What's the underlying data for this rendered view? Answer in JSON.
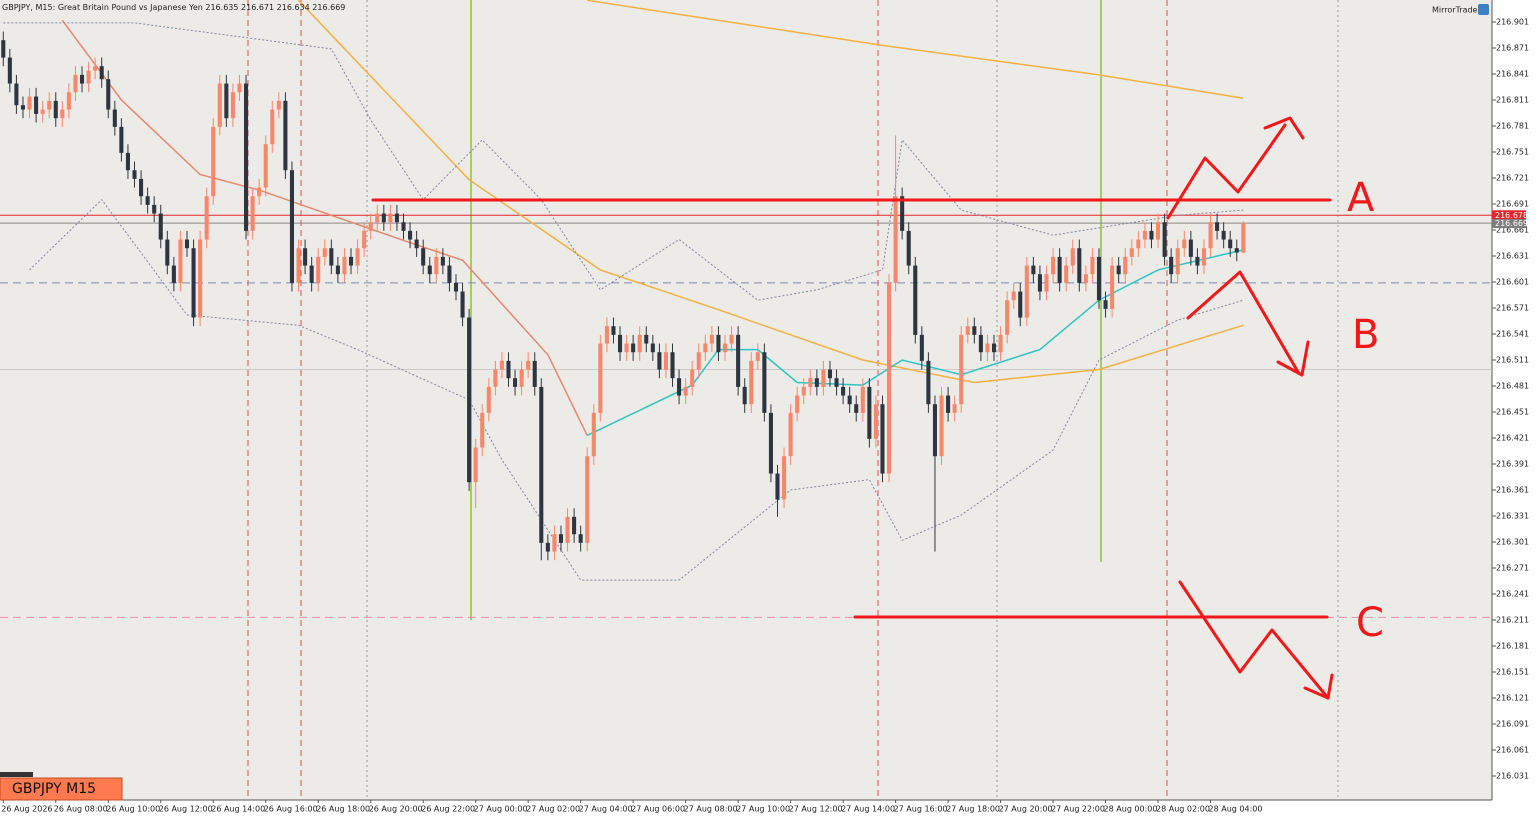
{
  "chart_data": {
    "type": "candlestick",
    "header": "GBPJPY, M15: Great Britain Pound vs Japanese Yen",
    "brand": "MirrorTrader",
    "badge": "GBPJPY M15",
    "bull_color": "#f7876a",
    "bear_color": "#2d3540",
    "open": [
      216.88,
      216.86,
      216.83,
      216.805,
      216.8,
      216.815,
      216.795,
      216.8,
      216.81,
      216.79,
      216.8,
      216.82,
      216.84,
      216.83,
      216.845,
      216.85,
      216.835,
      216.8,
      216.78,
      216.75,
      216.73,
      216.72,
      216.7,
      216.69,
      216.68,
      216.65,
      216.62,
      216.6,
      216.65,
      216.64,
      216.56,
      216.65,
      216.7,
      216.78,
      216.83,
      216.79,
      216.82,
      216.83,
      216.66,
      216.7,
      216.71,
      216.76,
      216.8,
      216.81,
      216.73,
      216.6,
      216.64,
      216.62,
      216.6,
      216.63,
      216.64,
      216.62,
      216.61,
      216.63,
      216.62,
      216.64,
      216.66,
      216.67,
      216.68,
      216.67,
      216.68,
      216.67,
      216.66,
      216.65,
      216.64,
      216.62,
      216.61,
      216.63,
      216.62,
      216.6,
      216.59,
      216.56,
      216.37,
      216.41,
      216.45,
      216.48,
      216.5,
      216.51,
      216.49,
      216.48,
      216.5,
      216.51,
      216.48,
      216.3,
      216.29,
      216.31,
      216.3,
      216.33,
      216.31,
      216.3,
      216.4,
      216.45,
      216.53,
      216.55,
      216.54,
      216.52,
      216.53,
      216.52,
      216.54,
      216.53,
      216.52,
      216.5,
      216.52,
      216.49,
      216.47,
      216.48,
      216.5,
      216.52,
      216.53,
      216.54,
      216.52,
      216.53,
      216.54,
      216.48,
      216.46,
      216.51,
      216.52,
      216.45,
      216.38,
      216.35,
      216.4,
      216.45,
      216.47,
      216.48,
      216.49,
      216.48,
      216.5,
      216.49,
      216.48,
      216.47,
      216.46,
      216.45,
      216.48,
      216.42,
      216.46,
      216.38,
      216.6,
      216.7,
      216.66,
      216.62,
      216.54,
      216.51,
      216.46,
      216.4,
      216.47,
      216.45,
      216.46,
      216.54,
      216.55,
      216.54,
      216.52,
      216.53,
      216.52,
      216.54,
      216.58,
      216.59,
      216.56,
      216.62,
      216.61,
      216.59,
      216.61,
      216.63,
      216.6,
      216.62,
      216.64,
      216.6,
      216.61,
      216.63,
      216.58,
      216.57,
      216.62,
      216.61,
      216.63,
      216.64,
      216.65,
      216.66,
      216.65,
      216.67,
      216.63,
      216.61,
      216.64,
      216.65,
      216.63,
      216.62,
      216.64,
      216.67,
      216.66,
      216.65,
      216.64,
      216.635
    ],
    "high": [
      216.89,
      216.87,
      216.84,
      216.815,
      216.825,
      216.825,
      216.81,
      216.82,
      216.82,
      216.81,
      216.83,
      216.85,
      216.85,
      216.855,
      216.86,
      216.86,
      216.845,
      216.81,
      216.79,
      216.76,
      216.74,
      216.73,
      216.71,
      216.7,
      216.69,
      216.66,
      216.63,
      216.66,
      216.66,
      216.65,
      216.66,
      216.71,
      216.79,
      216.84,
      216.84,
      216.83,
      216.84,
      216.84,
      216.71,
      216.72,
      216.77,
      216.81,
      216.82,
      216.82,
      216.74,
      216.65,
      216.65,
      216.63,
      216.64,
      216.65,
      216.65,
      216.63,
      216.64,
      216.64,
      216.65,
      216.67,
      216.68,
      216.69,
      216.69,
      216.69,
      216.69,
      216.68,
      216.67,
      216.66,
      216.65,
      216.63,
      216.64,
      216.64,
      216.63,
      216.61,
      216.6,
      216.57,
      216.42,
      216.46,
      216.49,
      216.51,
      216.52,
      216.52,
      216.5,
      216.51,
      216.52,
      216.52,
      216.49,
      216.31,
      216.32,
      216.32,
      216.34,
      216.34,
      216.32,
      216.41,
      216.46,
      216.54,
      216.56,
      216.56,
      216.55,
      216.54,
      216.54,
      216.55,
      216.55,
      216.54,
      216.53,
      216.53,
      216.53,
      216.5,
      216.49,
      216.51,
      216.53,
      216.54,
      216.55,
      216.55,
      216.54,
      216.55,
      216.55,
      216.49,
      216.52,
      216.53,
      216.53,
      216.46,
      216.39,
      216.41,
      216.46,
      216.48,
      216.49,
      216.5,
      216.5,
      216.51,
      216.51,
      216.5,
      216.49,
      216.48,
      216.47,
      216.49,
      216.49,
      216.47,
      216.47,
      216.61,
      216.77,
      216.71,
      216.67,
      216.63,
      216.55,
      216.52,
      216.47,
      216.48,
      216.48,
      216.47,
      216.55,
      216.56,
      216.56,
      216.55,
      216.54,
      216.54,
      216.55,
      216.59,
      216.6,
      216.6,
      216.63,
      216.63,
      216.62,
      216.62,
      216.64,
      216.64,
      216.63,
      216.65,
      216.65,
      216.62,
      216.64,
      216.64,
      216.59,
      216.63,
      216.63,
      216.64,
      216.65,
      216.66,
      216.67,
      216.67,
      216.68,
      216.68,
      216.64,
      216.65,
      216.66,
      216.66,
      216.64,
      216.65,
      216.68,
      216.68,
      216.67,
      216.66,
      216.65,
      216.671
    ],
    "low": [
      216.85,
      216.82,
      216.795,
      216.79,
      216.79,
      216.785,
      216.785,
      216.79,
      216.78,
      216.78,
      216.79,
      216.81,
      216.82,
      216.82,
      216.835,
      216.825,
      216.79,
      216.77,
      216.74,
      216.72,
      216.71,
      216.69,
      216.68,
      216.67,
      216.64,
      216.61,
      216.59,
      216.59,
      216.63,
      216.55,
      216.55,
      216.64,
      216.69,
      216.77,
      216.78,
      216.78,
      216.81,
      216.65,
      216.65,
      216.69,
      216.7,
      216.75,
      216.79,
      216.72,
      216.59,
      216.59,
      216.61,
      216.59,
      216.59,
      216.62,
      216.61,
      216.6,
      216.6,
      216.61,
      216.61,
      216.63,
      216.65,
      216.66,
      216.66,
      216.66,
      216.66,
      216.65,
      216.64,
      216.63,
      216.61,
      216.6,
      216.6,
      216.61,
      216.59,
      216.58,
      216.55,
      216.36,
      216.34,
      216.4,
      216.44,
      216.47,
      216.49,
      216.48,
      216.47,
      216.47,
      216.49,
      216.47,
      216.28,
      216.28,
      216.28,
      216.29,
      216.29,
      216.3,
      216.29,
      216.29,
      216.39,
      216.44,
      216.52,
      216.53,
      216.51,
      216.51,
      216.51,
      216.51,
      216.52,
      216.51,
      216.49,
      216.49,
      216.48,
      216.46,
      216.46,
      216.47,
      216.49,
      216.51,
      216.52,
      216.51,
      216.51,
      216.52,
      216.47,
      216.45,
      216.45,
      216.5,
      216.44,
      216.37,
      216.33,
      216.34,
      216.39,
      216.44,
      216.46,
      216.47,
      216.47,
      216.47,
      216.48,
      216.47,
      216.46,
      216.45,
      216.44,
      216.44,
      216.41,
      216.41,
      216.37,
      216.37,
      216.59,
      216.65,
      216.61,
      216.53,
      216.5,
      216.45,
      216.29,
      216.39,
      216.44,
      216.44,
      216.45,
      216.53,
      216.53,
      216.51,
      216.51,
      216.51,
      216.51,
      216.53,
      216.57,
      216.55,
      216.55,
      216.6,
      216.58,
      216.58,
      216.6,
      216.59,
      216.59,
      216.61,
      216.59,
      216.59,
      216.6,
      216.57,
      216.56,
      216.56,
      216.6,
      216.6,
      216.62,
      216.63,
      216.64,
      216.64,
      216.64,
      216.62,
      216.6,
      216.6,
      216.63,
      216.62,
      216.61,
      216.61,
      216.63,
      216.65,
      216.64,
      216.63,
      216.625,
      216.634
    ],
    "close": [
      216.86,
      216.83,
      216.805,
      216.8,
      216.815,
      216.795,
      216.8,
      216.81,
      216.79,
      216.8,
      216.82,
      216.84,
      216.83,
      216.845,
      216.85,
      216.835,
      216.8,
      216.78,
      216.75,
      216.73,
      216.72,
      216.7,
      216.69,
      216.68,
      216.65,
      216.62,
      216.6,
      216.65,
      216.64,
      216.56,
      216.65,
      216.7,
      216.78,
      216.83,
      216.79,
      216.82,
      216.83,
      216.66,
      216.7,
      216.71,
      216.76,
      216.8,
      216.81,
      216.73,
      216.6,
      216.64,
      216.62,
      216.6,
      216.63,
      216.64,
      216.62,
      216.61,
      216.63,
      216.62,
      216.64,
      216.66,
      216.67,
      216.68,
      216.67,
      216.68,
      216.67,
      216.66,
      216.65,
      216.64,
      216.62,
      216.61,
      216.63,
      216.62,
      216.6,
      216.59,
      216.56,
      216.37,
      216.41,
      216.45,
      216.48,
      216.5,
      216.51,
      216.49,
      216.48,
      216.5,
      216.51,
      216.48,
      216.3,
      216.29,
      216.31,
      216.3,
      216.33,
      216.31,
      216.3,
      216.4,
      216.45,
      216.53,
      216.55,
      216.54,
      216.52,
      216.53,
      216.52,
      216.54,
      216.53,
      216.52,
      216.5,
      216.52,
      216.49,
      216.47,
      216.48,
      216.5,
      216.52,
      216.53,
      216.54,
      216.52,
      216.53,
      216.54,
      216.48,
      216.46,
      216.51,
      216.52,
      216.45,
      216.38,
      216.35,
      216.4,
      216.45,
      216.47,
      216.48,
      216.49,
      216.48,
      216.5,
      216.49,
      216.48,
      216.47,
      216.46,
      216.45,
      216.48,
      216.42,
      216.46,
      216.38,
      216.6,
      216.7,
      216.66,
      216.62,
      216.54,
      216.51,
      216.46,
      216.4,
      216.47,
      216.45,
      216.46,
      216.54,
      216.55,
      216.54,
      216.52,
      216.53,
      216.52,
      216.54,
      216.58,
      216.59,
      216.56,
      216.62,
      216.61,
      216.59,
      216.61,
      216.63,
      216.6,
      216.62,
      216.64,
      216.6,
      216.61,
      216.63,
      216.58,
      216.57,
      216.62,
      216.61,
      216.63,
      216.64,
      216.65,
      216.66,
      216.65,
      216.67,
      216.63,
      216.61,
      216.64,
      216.65,
      216.63,
      216.62,
      216.64,
      216.67,
      216.66,
      216.65,
      216.64,
      216.635,
      216.669
    ],
    "xlim": [
      -0.5,
      226.9
    ],
    "ylim": [
      216.0033,
      216.9264
    ],
    "xticks": [
      {
        "value": 0,
        "label": "26 Aug 2026"
      },
      {
        "value": 8,
        "label": "26 Aug 08:00"
      },
      {
        "value": 16,
        "label": "26 Aug 10:00"
      },
      {
        "value": 24,
        "label": "26 Aug 12:00"
      },
      {
        "value": 32,
        "label": "26 Aug 14:00"
      },
      {
        "value": 40,
        "label": "26 Aug 16:00"
      },
      {
        "value": 48,
        "label": "26 Aug 18:00"
      },
      {
        "value": 56,
        "label": "26 Aug 20:00"
      },
      {
        "value": 64,
        "label": "26 Aug 22:00"
      },
      {
        "value": 72,
        "label": "27 Aug 00:00"
      },
      {
        "value": 80,
        "label": "27 Aug 02:00"
      },
      {
        "value": 88,
        "label": "27 Aug 04:00"
      },
      {
        "value": 96,
        "label": "27 Aug 06:00"
      },
      {
        "value": 104,
        "label": "27 Aug 08:00"
      },
      {
        "value": 112,
        "label": "27 Aug 10:00"
      },
      {
        "value": 120,
        "label": "27 Aug 12:00"
      },
      {
        "value": 128,
        "label": "27 Aug 14:00"
      },
      {
        "value": 136,
        "label": "27 Aug 16:00"
      },
      {
        "value": 144,
        "label": "27 Aug 18:00"
      },
      {
        "value": 152,
        "label": "27 Aug 20:00"
      },
      {
        "value": 160,
        "label": "27 Aug 22:00"
      },
      {
        "value": 168,
        "label": "28 Aug 00:00"
      },
      {
        "value": 176,
        "label": "28 Aug 02:00"
      },
      {
        "value": 184,
        "label": "28 Aug 04:00"
      }
    ],
    "yticks": [
      216.901,
      216.871,
      216.841,
      216.811,
      216.781,
      216.751,
      216.721,
      216.691,
      216.661,
      216.631,
      216.601,
      216.571,
      216.541,
      216.511,
      216.481,
      216.451,
      216.421,
      216.391,
      216.361,
      216.331,
      216.301,
      216.271,
      216.241,
      216.211,
      216.181,
      216.151,
      216.121,
      216.091,
      216.061,
      216.031
    ],
    "ask": 216.678,
    "ask_color": "#e8242a",
    "hlines": [
      {
        "value": 216.6,
        "color": "#7d8bb0",
        "style": "dashed"
      },
      {
        "value": 216.5,
        "color": "#c9c9c6",
        "style": "solid"
      },
      {
        "value": 216.214,
        "color": "#f08cb0",
        "style": "dashed"
      }
    ],
    "overlays": [
      {
        "color": "#f5b041",
        "style": "solid",
        "x": [
          89,
          134,
          167,
          189
        ],
        "values": [
          216.926,
          216.874,
          216.84,
          216.813
        ]
      },
      {
        "color": "#f5b041",
        "style": "solid",
        "x": [
          45,
          71,
          91,
          109,
          131,
          148,
          167,
          189
        ],
        "values": [
          216.926,
          216.719,
          216.615,
          216.569,
          216.511,
          216.485,
          216.5,
          216.551
        ]
      },
      {
        "color": "#e8876e",
        "style": "solid",
        "x": [
          9,
          18,
          30,
          39,
          50,
          61,
          70,
          83,
          89
        ],
        "values": [
          216.903,
          216.811,
          216.725,
          216.707,
          216.678,
          216.649,
          216.626,
          216.517,
          216.424
        ]
      },
      {
        "color": "#2ec4c4",
        "style": "solid",
        "x": [
          89,
          97,
          105,
          109,
          115,
          121,
          131,
          137,
          146,
          158,
          167,
          176,
          189
        ],
        "values": [
          216.424,
          216.453,
          216.482,
          216.523,
          216.523,
          216.485,
          216.482,
          216.511,
          216.494,
          216.523,
          216.58,
          216.615,
          216.638
        ]
      },
      {
        "color": "#7f86a6",
        "style": "dotted",
        "x": [
          0,
          20,
          50,
          56,
          64,
          73,
          82,
          91,
          103,
          115,
          124,
          134,
          137,
          146,
          160,
          179,
          189
        ],
        "values": [
          216.9,
          216.9,
          216.87,
          216.788,
          216.696,
          216.765,
          216.696,
          216.592,
          216.65,
          216.58,
          216.592,
          216.615,
          216.765,
          216.684,
          216.655,
          216.678,
          216.684
        ]
      },
      {
        "color": "#7f86a6",
        "style": "dotted",
        "x": [
          4,
          15,
          28,
          45,
          54,
          71,
          76,
          88,
          103,
          120,
          132,
          137,
          146,
          160,
          167,
          179,
          189
        ],
        "values": [
          216.615,
          216.696,
          216.563,
          216.551,
          216.523,
          216.465,
          216.396,
          216.257,
          216.257,
          216.361,
          216.373,
          216.303,
          216.332,
          216.407,
          216.511,
          216.557,
          216.58
        ]
      }
    ],
    "annotations": [
      "A",
      "B",
      "C"
    ]
  }
}
